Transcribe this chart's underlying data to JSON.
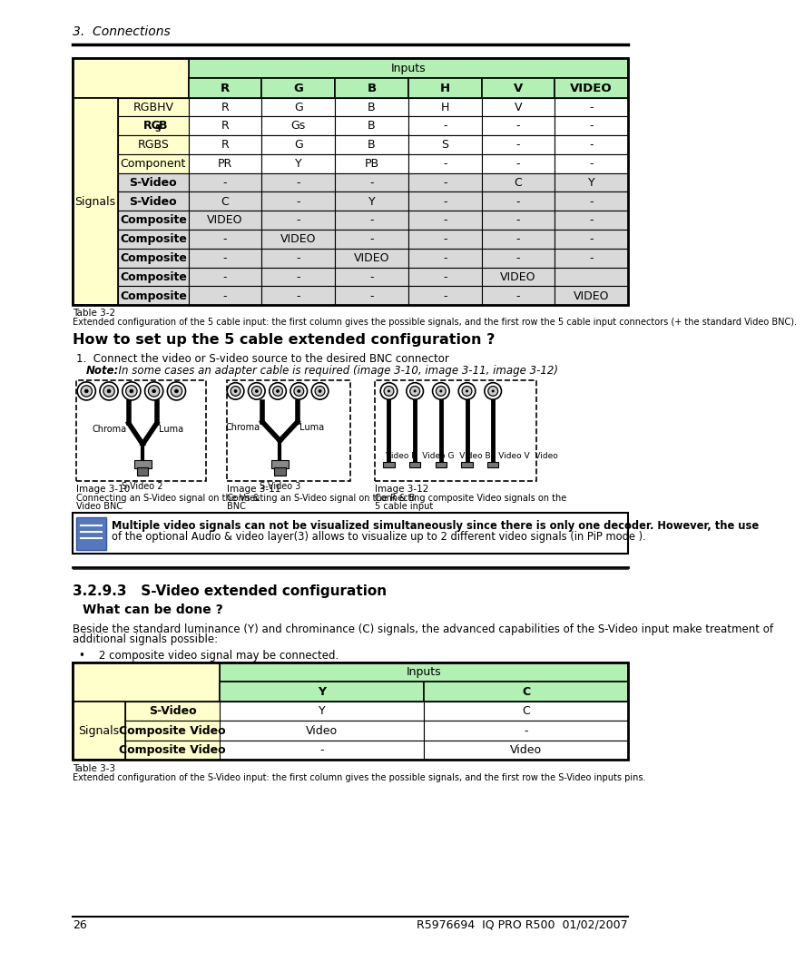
{
  "page_title": "3.  Connections",
  "bg_color": "#ffffff",
  "table1": {
    "title": "Table 3-2",
    "caption": "Extended configuration of the 5 cable input: the first column gives the possible signals, and the first row the 5 cable input connectors (+ the standard Video BNC).",
    "col_headers": [
      "R",
      "G",
      "B",
      "H",
      "V",
      "VIDEO"
    ],
    "row_labels": [
      "RGBHV",
      "RGsB",
      "RGBS",
      "Component",
      "S-Video",
      "S-Video",
      "Composite",
      "Composite",
      "Composite",
      "Composite",
      "Composite"
    ],
    "row_label_bold": [
      false,
      false,
      false,
      false,
      true,
      true,
      true,
      true,
      true,
      true,
      true
    ],
    "data": [
      [
        "R",
        "G",
        "B",
        "H",
        "V",
        "-"
      ],
      [
        "R",
        "Gs",
        "B",
        "-",
        "-",
        "-"
      ],
      [
        "R",
        "G",
        "B",
        "S",
        "-",
        "-"
      ],
      [
        "PR",
        "Y",
        "PB",
        "-",
        "-",
        "-"
      ],
      [
        "-",
        "-",
        "-",
        "-",
        "C",
        "Y"
      ],
      [
        "C",
        "-",
        "Y",
        "-",
        "-",
        "-"
      ],
      [
        "VIDEO",
        "-",
        "-",
        "-",
        "-",
        "-"
      ],
      [
        "-",
        "VIDEO",
        "-",
        "-",
        "-",
        "-"
      ],
      [
        "-",
        "-",
        "VIDEO",
        "-",
        "-",
        "-"
      ],
      [
        "-",
        "-",
        "-",
        "-",
        "VIDEO",
        ""
      ],
      [
        "-",
        "-",
        "-",
        "-",
        "-",
        "VIDEO"
      ]
    ],
    "header_bg": "#b3f0b3",
    "signals_bg": "#ffffcc",
    "gray_rows": [
      4,
      5,
      6,
      7,
      8,
      9,
      10
    ],
    "gray_color": "#d9d9d9",
    "white_color": "#ffffff"
  },
  "section_how": {
    "title": "How to set up the 5 cable extended configuration ?",
    "step1": "1.  Connect the video or S-video source to the desired BNC connector",
    "note_bold": "Note:",
    "note_italic": "  In some cases an adapter cable is required (image 3-10, image 3-11, image 3-12)"
  },
  "images": {
    "img1": {
      "label": "Chroma",
      "label2": "Luma",
      "svideo": "S-Video 2",
      "cap_title": "Image 3-10",
      "cap1": "Connecting an S-Video signal on the Vs &",
      "cap2": "Video BNC"
    },
    "img2": {
      "label": "Chroma",
      "label2": "Luma",
      "svideo": "S-Video 3",
      "cap_title": "Image 3-11",
      "cap1": "Connecting an S-Video signal on the R & B",
      "cap2": "BNC"
    },
    "img3": {
      "labels": "Video R  Video G  Video B   Video V  Video",
      "cap_title": "Image 3-12",
      "cap1": "Connecting composite Video signals on the",
      "cap2": "5 cable input"
    }
  },
  "note_box": {
    "line1": "Multiple video signals can not be visualized simultaneously since there is only one decoder. However, the use",
    "line2": "of the optional Audio & video layer(3) allows to visualize up to 2 different video signals (in PiP mode ).",
    "icon_bg": "#5577bb"
  },
  "section_329": {
    "title": "3.2.9.3   S-Video extended configuration",
    "subtitle": "What can be done ?",
    "body1": "Beside the standard luminance (Y) and chrominance (C) signals, the advanced capabilities of the S-Video input make treatment of",
    "body2": "additional signals possible:",
    "bullet": "•    2 composite video signal may be connected."
  },
  "table2": {
    "title": "Table 3-3",
    "caption": "Extended configuration of the S-Video input: the first column gives the possible signals, and the first row the S-Video inputs pins.",
    "col_headers": [
      "Y",
      "C"
    ],
    "row_labels": [
      "S-Video",
      "Composite Video",
      "Composite Video"
    ],
    "data": [
      [
        "Y",
        "C"
      ],
      [
        "Video",
        "-"
      ],
      [
        "-",
        "Video"
      ]
    ],
    "header_bg": "#b3f0b3",
    "signals_bg": "#ffffcc",
    "white_color": "#ffffff"
  },
  "footer": {
    "page": "26",
    "right": "R5976694  IQ PRO R500  01/02/2007"
  }
}
